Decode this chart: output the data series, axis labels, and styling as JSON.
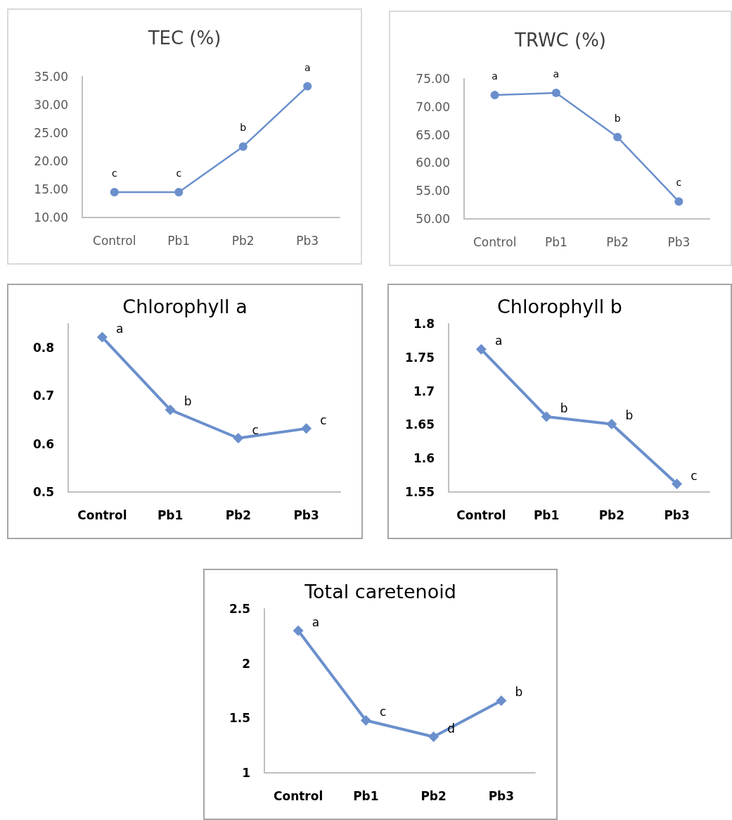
{
  "chart_data": [
    {
      "type": "line",
      "title": "TEC (%)",
      "categories": [
        "Control",
        "Pb1",
        "Pb2",
        "Pb3"
      ],
      "series": [
        {
          "color": "#6a8fcc",
          "values": [
            14.5,
            14.5,
            22.6,
            33.3
          ],
          "value_labels": [
            "c",
            "c",
            "b",
            "a"
          ]
        }
      ],
      "ylim": [
        10,
        35
      ],
      "yticks": [
        {
          "value": 10,
          "label": "10.00"
        },
        {
          "value": 15,
          "label": "15.00"
        },
        {
          "value": 20,
          "label": "20.00"
        },
        {
          "value": 25,
          "label": "25.00"
        },
        {
          "value": 30,
          "label": "30.00"
        },
        {
          "value": 35,
          "label": "35.00"
        }
      ],
      "grid": false,
      "marker": "circle",
      "line_style": "solid"
    },
    {
      "type": "line",
      "title": "TRWC (%)",
      "categories": [
        "Control",
        "Pb1",
        "Pb2",
        "Pb3"
      ],
      "series": [
        {
          "color": "#6a8fcc",
          "values": [
            72.1,
            72.5,
            64.6,
            53.1
          ],
          "value_labels": [
            "a",
            "a",
            "b",
            "c"
          ]
        }
      ],
      "ylim": [
        50,
        75
      ],
      "yticks": [
        {
          "value": 50,
          "label": "50.00"
        },
        {
          "value": 55,
          "label": "55.00"
        },
        {
          "value": 60,
          "label": "60.00"
        },
        {
          "value": 65,
          "label": "65.00"
        },
        {
          "value": 70,
          "label": "70.00"
        },
        {
          "value": 75,
          "label": "75.00"
        }
      ],
      "grid": false,
      "marker": "circle",
      "line_style": "solid"
    },
    {
      "type": "line",
      "title": "Chlorophyll a",
      "categories": [
        "Control",
        "Pb1",
        "Pb2",
        "Pb3"
      ],
      "series": [
        {
          "color": "#6a8fcc",
          "values": [
            0.822,
            0.671,
            0.612,
            0.632
          ],
          "value_labels": [
            "a",
            "b",
            "c",
            "c"
          ]
        }
      ],
      "ylim": [
        0.5,
        0.85
      ],
      "yticks": [
        0.5,
        0.6,
        0.7,
        0.8
      ],
      "grid": false,
      "marker": "diamond",
      "line_style": "solid"
    },
    {
      "type": "line",
      "title": "Chlorophyll b",
      "categories": [
        "Control",
        "Pb1",
        "Pb2",
        "Pb3"
      ],
      "series": [
        {
          "color": "#6a8fcc",
          "values": [
            1.762,
            1.662,
            1.651,
            1.562
          ],
          "value_labels": [
            "a",
            "b",
            "b",
            "c"
          ]
        }
      ],
      "ylim": [
        1.55,
        1.8
      ],
      "yticks": [
        1.55,
        1.6,
        1.65,
        1.7,
        1.75,
        1.8
      ],
      "grid": false,
      "marker": "diamond",
      "line_style": "solid"
    },
    {
      "type": "line",
      "title": "Total caretenoid",
      "categories": [
        "Control",
        "Pb1",
        "Pb2",
        "Pb3"
      ],
      "series": [
        {
          "color": "#6a8fcc",
          "values": [
            2.3,
            1.48,
            1.33,
            1.66
          ],
          "value_labels": [
            "a",
            "c",
            "d",
            "b"
          ]
        }
      ],
      "ylim": [
        1,
        2.5
      ],
      "yticks": [
        1,
        1.5,
        2,
        2.5
      ],
      "grid": false,
      "marker": "diamond",
      "line_style": "solid"
    }
  ]
}
